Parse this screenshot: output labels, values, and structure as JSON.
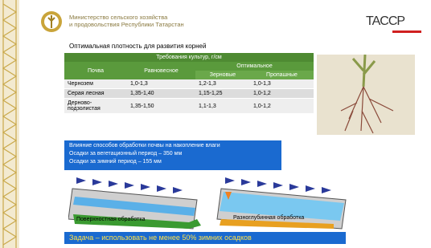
{
  "header": {
    "ministry_line1": "Министерство сельского хозяйства",
    "ministry_line2": "и продовольствия Республики Татарстан",
    "logo": "TACCP"
  },
  "subtitle": "Оптимальная плотность для развития корней",
  "table": {
    "title": "Требования культур, г/см",
    "col_soil": "Почва",
    "col_equilibrium": "Равновесное",
    "col_optimal": "Оптимальное",
    "col_grain": "Зерновые",
    "col_row": "Пропашные",
    "rows": [
      [
        "Чернозем",
        "1,0-1,3",
        "1,2-1,3",
        "1,0-1,3"
      ],
      [
        "Серая лесная",
        "1,35-1,40",
        "1,15-1,25",
        "1,0-1,2"
      ],
      [
        "Дерново-подзолистая",
        "1,35-1,50",
        "1,1-1,3",
        "1,0-1,2"
      ]
    ]
  },
  "info": {
    "line1": "Влияние способов обработки почвы на накопление влаги",
    "line2": "Осадки за вегетационный период – 350 мм",
    "line3": "Осадки за зимний период – 155 мм"
  },
  "diagrams": {
    "left": "Поверхностная обработка",
    "right": "Разноглубинная обработка"
  },
  "task": "Задача – использовать  не менее 50% зимних осадков"
}
